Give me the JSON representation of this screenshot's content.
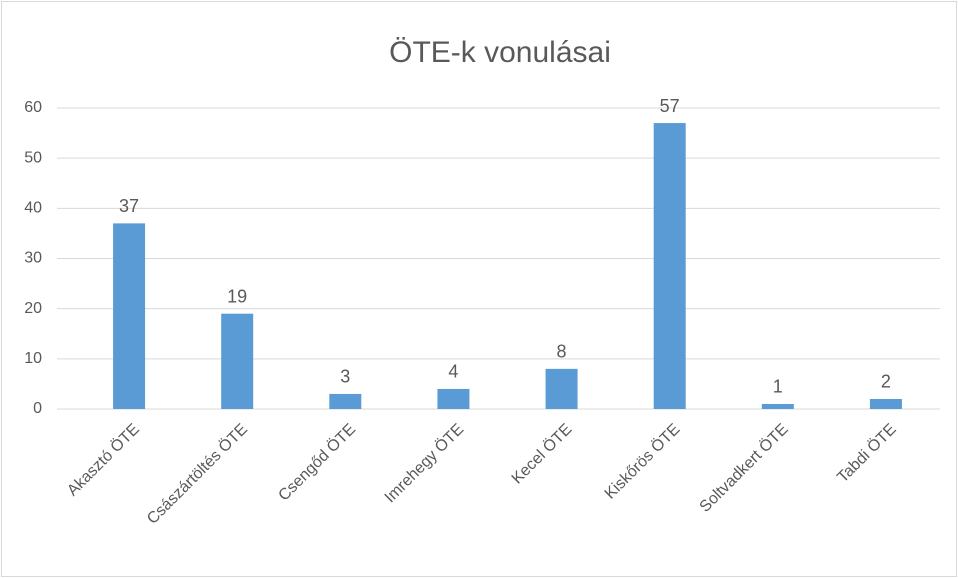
{
  "chart_data": {
    "type": "bar",
    "title": "ÖTE-k vonulásai",
    "categories": [
      "Akasztó ÖTE",
      "Császártöltés ÖTE",
      "Csengőd ÖTE",
      "Imrehegy ÖTE",
      "Kecel ÖTE",
      "Kiskőrös ÖTE",
      "Soltvadkert ÖTE",
      "Tabdi ÖTE"
    ],
    "values": [
      37,
      19,
      3,
      4,
      8,
      57,
      1,
      2
    ],
    "color": "#5b9bd5",
    "ylim": [
      0,
      60
    ],
    "yticks": [
      0,
      10,
      20,
      30,
      40,
      50,
      60
    ],
    "grid": true
  }
}
